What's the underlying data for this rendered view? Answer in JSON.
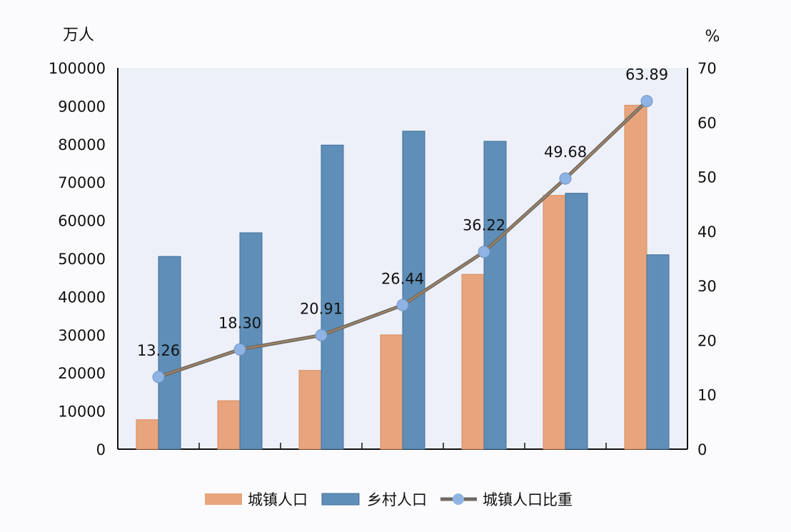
{
  "chart_data": {
    "type": "bar",
    "title": "",
    "xlabel": "",
    "ylabel": "万人",
    "y2label": "%",
    "ylim": [
      0,
      100000
    ],
    "y2lim": [
      0,
      70
    ],
    "yticks": [
      "0",
      "10000",
      "20000",
      "30000",
      "40000",
      "50000",
      "60000",
      "70000",
      "80000",
      "90000",
      "100000"
    ],
    "y2ticks": [
      "0",
      "10",
      "20",
      "30",
      "40",
      "50",
      "60",
      "70"
    ],
    "categories": [
      "",
      "",
      "",
      "",
      "",
      "",
      ""
    ],
    "series": [
      {
        "name": "城镇人口",
        "type": "bar",
        "axis": "left",
        "color": "#e8a47c",
        "values": [
          7726,
          12710,
          20659,
          29971,
          45844,
          66557,
          90199
        ]
      },
      {
        "name": "乡村人口",
        "type": "bar",
        "axis": "left",
        "color": "#5f8fb8",
        "values": [
          50534,
          56748,
          79736,
          83397,
          80739,
          67113,
          50979
        ]
      },
      {
        "name": "城镇人口比重",
        "type": "line",
        "axis": "right",
        "color": "#6e6a66",
        "marker_color": "#8fb4e3",
        "values": [
          13.26,
          18.3,
          20.91,
          26.44,
          36.22,
          49.68,
          63.89
        ],
        "labels": [
          "13.26",
          "18.30",
          "20.91",
          "26.44",
          "36.22",
          "49.68",
          "63.89"
        ]
      }
    ],
    "grid": false,
    "legend": "bottom"
  }
}
